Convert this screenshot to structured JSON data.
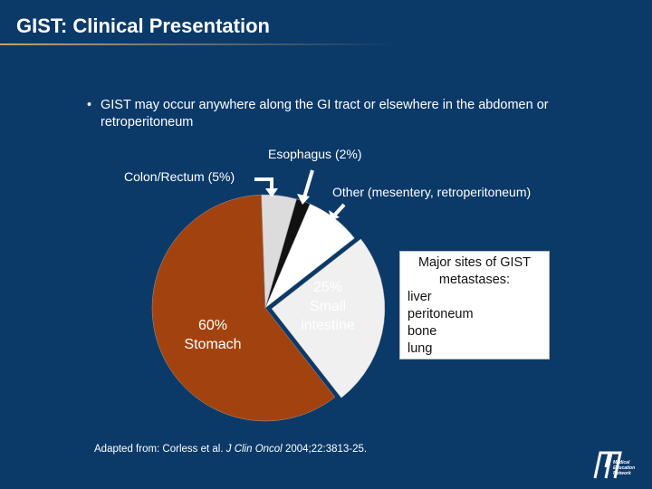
{
  "title": "GIST: Clinical Presentation",
  "bullet": "GIST may occur anywhere along the GI tract or elsewhere in the abdomen or retroperitoneum",
  "chart_data": {
    "type": "pie",
    "categories": [
      "Stomach",
      "Small intestine",
      "Other (mesentery, retroperitoneum)",
      "Esophagus (2%)",
      "Colon/Rectum (5%)"
    ],
    "values": [
      60,
      25,
      8,
      2,
      5
    ],
    "value_labels": [
      "60%",
      "25%",
      null,
      null,
      null
    ],
    "colors": [
      "#a2430f",
      "#f0f0f0",
      "#ffffff",
      "#111111",
      "#dcdcdc"
    ]
  },
  "metastases": {
    "title": "Major sites of GIST metastases:",
    "items": [
      "liver",
      "peritoneum",
      "bone",
      "lung"
    ]
  },
  "source": {
    "prefix": "Adapted from: Corless et al.",
    "journal": "J Clin Oncol",
    "rest": "2004;22:3813-25."
  },
  "logo": {
    "lines": [
      "Medical",
      "Education",
      "Network"
    ]
  }
}
